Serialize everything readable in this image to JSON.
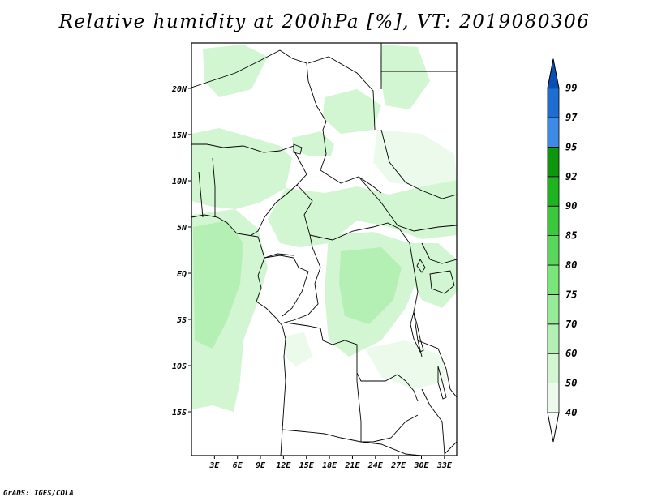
{
  "title": "Relative humidity at 200hPa [%], VT: 2019080306",
  "credit": "GrADS: IGES/COLA",
  "map": {
    "lat_labels": [
      "20N",
      "15N",
      "10N",
      "5N",
      "EQ",
      "5S",
      "10S",
      "15S"
    ],
    "lon_labels": [
      "3E",
      "6E",
      "9E",
      "12E",
      "15E",
      "18E",
      "21E",
      "24E",
      "27E",
      "30E",
      "33E"
    ]
  },
  "colorbar": {
    "levels": [
      "40",
      "50",
      "60",
      "70",
      "75",
      "80",
      "85",
      "90",
      "92",
      "95",
      "97",
      "99"
    ],
    "colors": [
      "#ffffff",
      "#ebfaeb",
      "#d2f5d2",
      "#b4f0b4",
      "#96eb96",
      "#78e678",
      "#5ad75a",
      "#3cc83c",
      "#1eb41e",
      "#0f960f",
      "#3c8ce6",
      "#1e6ed2",
      "#0a50b4"
    ]
  },
  "chart_data": {
    "type": "heatmap",
    "title": "Relative humidity at 200hPa [%], VT: 2019080306",
    "field": "Relative humidity at 200hPa",
    "units": "%",
    "valid_time": "2019080306",
    "contour_levels": [
      40,
      50,
      60,
      70,
      75,
      80,
      85,
      90,
      92,
      95,
      97,
      99
    ],
    "lon_range": [
      0,
      34.5
    ],
    "lat_range": [
      -20,
      24.5
    ],
    "lon_ticks": [
      "3E",
      "6E",
      "9E",
      "12E",
      "15E",
      "18E",
      "21E",
      "24E",
      "27E",
      "30E",
      "33E"
    ],
    "lat_ticks": [
      "20N",
      "15N",
      "10N",
      "5N",
      "EQ",
      "5S",
      "10S",
      "15S"
    ]
  }
}
